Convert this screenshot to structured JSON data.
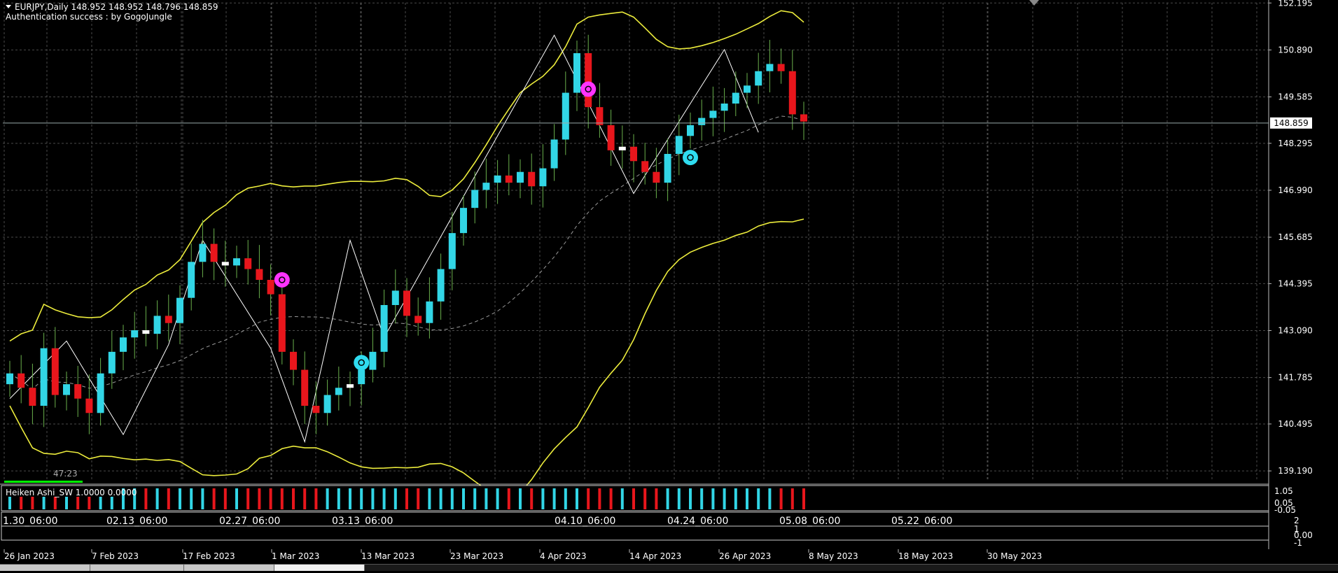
{
  "header": {
    "symbol_line": "EURJPY,Daily  148.952 148.952 148.796 148.859",
    "auth_line": "Authentication success : by GogoJungle"
  },
  "timer": "47:23",
  "price_marker": "148.859",
  "colors": {
    "background": "#000000",
    "grid": "#4a4a4a",
    "bull": "#32d6e6",
    "bear": "#e8161c",
    "doji": "#ffffff",
    "wick": "#6ab04c",
    "bands": "#ecec3c",
    "zigzag": "#ffffff",
    "midband": "#9a9a9a",
    "signal_sell": "#ff33ff",
    "signal_buy": "#2fdcf0"
  },
  "chart_data": {
    "type": "candlestick",
    "symbol": "EURJPY",
    "timeframe": "Daily",
    "price_ticks": [
      "152.195",
      "150.890",
      "149.585",
      "148.295",
      "146.990",
      "145.685",
      "144.395",
      "143.090",
      "141.785",
      "140.495",
      "139.190"
    ],
    "ylim": [
      138.9,
      152.2
    ],
    "current_price": 148.859,
    "date_labels": [
      "26 Jan 2023",
      "7 Feb 2023",
      "17 Feb 2023",
      "1 Mar 2023",
      "13 Mar 2023",
      "23 Mar 2023",
      "4 Apr 2023",
      "14 Apr 2023",
      "26 Apr 2023",
      "8 May 2023",
      "18 May 2023",
      "30 May 2023"
    ],
    "indicator_time_labels": [
      "1.30_06:00",
      "02.13_06:00",
      "02.27_06:00",
      "03.13_06:00",
      "04.10_06:00",
      "04.24_06:00",
      "05.08_06:00",
      "05.22_06:00"
    ],
    "closes": [
      141.9,
      141.5,
      141.0,
      142.6,
      141.3,
      141.6,
      141.2,
      140.8,
      141.9,
      142.5,
      142.9,
      143.1,
      143.0,
      143.5,
      143.3,
      144.0,
      145.0,
      145.5,
      145.0,
      144.9,
      145.1,
      144.8,
      144.5,
      144.1,
      142.5,
      142.0,
      141.0,
      140.8,
      141.3,
      141.5,
      141.6,
      142.0,
      142.5,
      143.8,
      144.2,
      143.5,
      143.3,
      143.9,
      144.8,
      145.8,
      146.5,
      147.0,
      147.2,
      147.4,
      147.2,
      147.5,
      147.1,
      147.6,
      148.4,
      149.7,
      150.8,
      149.3,
      148.8,
      148.1,
      148.2,
      147.8,
      147.5,
      147.2,
      148.0,
      148.5,
      148.8,
      149.0,
      149.2,
      149.4,
      149.7,
      149.9,
      150.3,
      150.5,
      150.3,
      149.1,
      148.9
    ],
    "zigzag": [
      [
        0,
        141.2
      ],
      [
        5,
        142.8
      ],
      [
        10,
        140.2
      ],
      [
        14,
        142.7
      ],
      [
        17,
        145.6
      ],
      [
        23,
        142.6
      ],
      [
        26,
        140.0
      ],
      [
        30,
        145.6
      ],
      [
        33,
        142.9
      ],
      [
        48,
        151.3
      ],
      [
        55,
        146.9
      ],
      [
        63,
        150.9
      ],
      [
        66,
        148.6
      ]
    ],
    "signals": [
      {
        "type": "sell",
        "index": 24,
        "price": 144.5
      },
      {
        "type": "buy",
        "index": 31,
        "price": 142.2
      },
      {
        "type": "sell",
        "index": 51,
        "price": 149.8
      },
      {
        "type": "buy",
        "index": 60,
        "price": 147.9
      }
    ],
    "indicators": [
      {
        "label": "Heiken Ashi_SW 1.0000 0.0000",
        "axis_labels": [
          "1.05",
          "0.05",
          "-0.05"
        ]
      },
      {
        "label": "",
        "axis_labels": [
          "2",
          "1",
          "0.00",
          "-1"
        ]
      }
    ]
  }
}
